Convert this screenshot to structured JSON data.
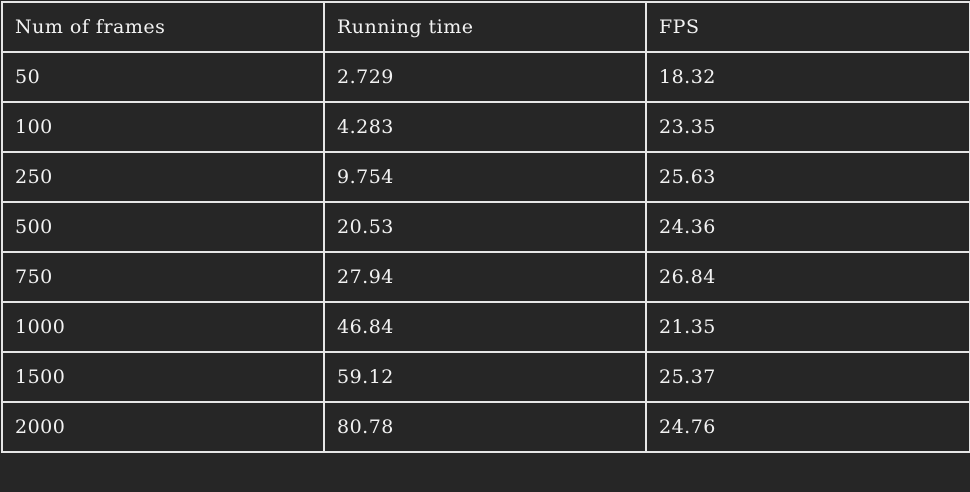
{
  "table": {
    "headers": [
      "Num of frames",
      "Running time",
      "FPS"
    ],
    "rows": [
      [
        "50",
        "2.729",
        "18.32"
      ],
      [
        "100",
        "4.283",
        "23.35"
      ],
      [
        "250",
        "9.754",
        "25.63"
      ],
      [
        "500",
        "20.53",
        "24.36"
      ],
      [
        "750",
        "27.94",
        "26.84"
      ],
      [
        "1000",
        "46.84",
        "21.35"
      ],
      [
        "1500",
        "59.12",
        "25.37"
      ],
      [
        "2000",
        "80.78",
        "24.76"
      ]
    ]
  },
  "colors": {
    "background": "#262626",
    "border": "#e6e6e6",
    "text": "#f2f2f2"
  }
}
